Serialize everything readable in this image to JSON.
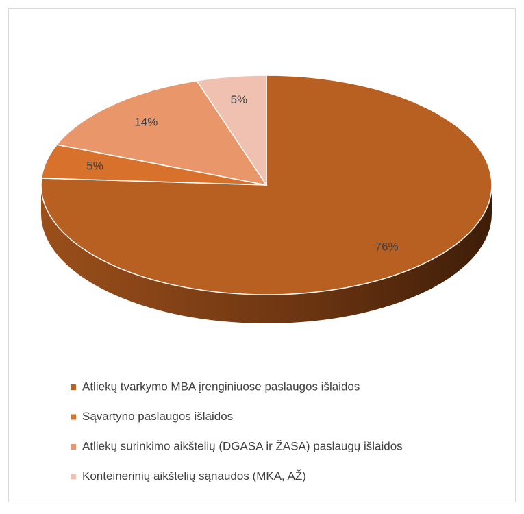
{
  "chart_data": {
    "type": "pie3d",
    "categories": [
      "Atliekų tvarkymo MBA įrenginiuose paslaugos išlaidos",
      "Sąvartyno paslaugos išlaidos",
      "Atliekų surinkimo aikštelių (DGASA ir ŽASA) paslaugų išlaidos",
      "Konteinerinių aikštelių sąnaudos (MKA, AŽ)"
    ],
    "values": [
      76,
      5,
      14,
      5
    ],
    "value_labels": [
      "76%",
      "5%",
      "14%",
      "5%"
    ],
    "colors": [
      "#b85f22",
      "#d7712c",
      "#e9966b",
      "#f0c0b0"
    ],
    "legend": "bottom"
  }
}
